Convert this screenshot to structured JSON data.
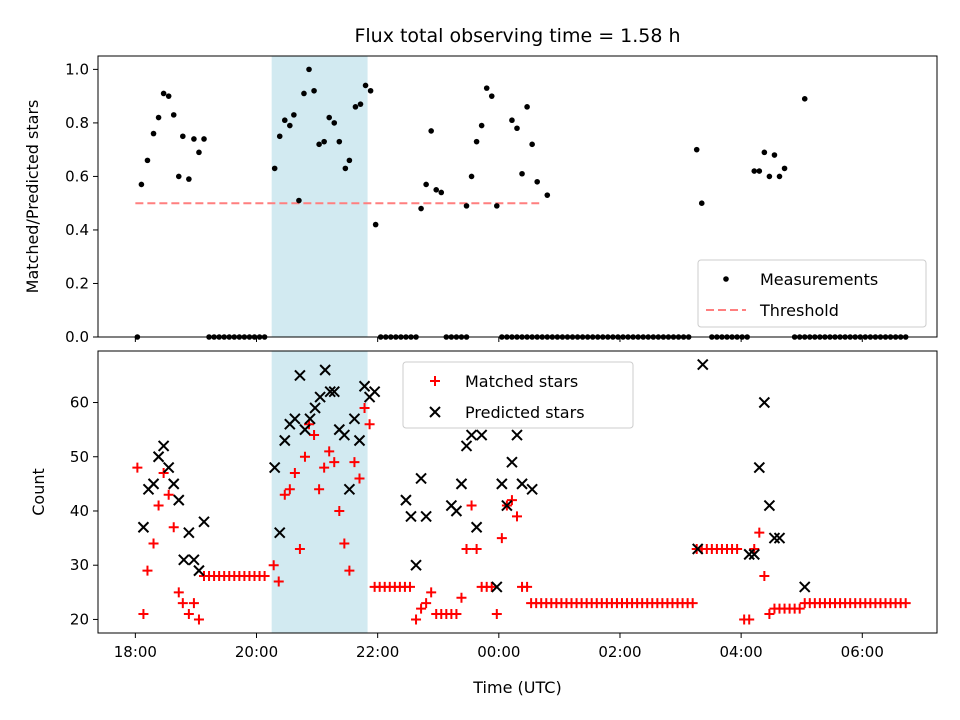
{
  "chart_data": [
    {
      "type": "scatter",
      "title": "Flux total observing time = 1.58 h",
      "xlabel": "",
      "ylabel": "Matched/Predicted stars",
      "x_unit": "time (UTC)",
      "xlim": [
        "18:00",
        "06:50"
      ],
      "ylim": [
        0,
        1.05
      ],
      "yticks": [
        0.0,
        0.2,
        0.4,
        0.6,
        0.8,
        1.0
      ],
      "ytick_labels": [
        "0.0",
        "0.2",
        "0.4",
        "0.6",
        "0.8",
        "1.0"
      ],
      "shaded_region": {
        "start": "20:15",
        "end": "21:50",
        "color": "#add8e6"
      },
      "legend": {
        "placement": "lower right",
        "entries": [
          "Measurements",
          "Threshold"
        ]
      },
      "series": [
        {
          "name": "Measurements",
          "marker": "dot",
          "color": "#000000",
          "points": [
            [
              "18:02",
              0.0
            ],
            [
              "18:06",
              0.57
            ],
            [
              "18:12",
              0.66
            ],
            [
              "18:18",
              0.76
            ],
            [
              "18:23",
              0.82
            ],
            [
              "18:28",
              0.91
            ],
            [
              "18:33",
              0.9
            ],
            [
              "18:38",
              0.83
            ],
            [
              "18:43",
              0.6
            ],
            [
              "18:47",
              0.75
            ],
            [
              "18:53",
              0.59
            ],
            [
              "18:58",
              0.74
            ],
            [
              "19:03",
              0.69
            ],
            [
              "19:08",
              0.74
            ],
            [
              "20:18",
              0.63
            ],
            [
              "20:23",
              0.75
            ],
            [
              "20:28",
              0.81
            ],
            [
              "20:33",
              0.79
            ],
            [
              "20:37",
              0.83
            ],
            [
              "20:42",
              0.51
            ],
            [
              "20:47",
              0.91
            ],
            [
              "20:52",
              1.0
            ],
            [
              "20:57",
              0.92
            ],
            [
              "21:02",
              0.72
            ],
            [
              "21:07",
              0.73
            ],
            [
              "21:12",
              0.82
            ],
            [
              "21:17",
              0.8
            ],
            [
              "21:22",
              0.73
            ],
            [
              "21:28",
              0.63
            ],
            [
              "21:32",
              0.66
            ],
            [
              "21:38",
              0.86
            ],
            [
              "21:43",
              0.87
            ],
            [
              "21:48",
              0.94
            ],
            [
              "21:53",
              0.92
            ],
            [
              "21:58",
              0.42
            ],
            [
              "22:43",
              0.48
            ],
            [
              "22:48",
              0.57
            ],
            [
              "22:53",
              0.77
            ],
            [
              "22:58",
              0.55
            ],
            [
              "23:03",
              0.54
            ],
            [
              "23:28",
              0.49
            ],
            [
              "23:33",
              0.6
            ],
            [
              "23:38",
              0.73
            ],
            [
              "23:43",
              0.79
            ],
            [
              "23:48",
              0.93
            ],
            [
              "23:53",
              0.9
            ],
            [
              "23:58",
              0.49
            ],
            [
              "24:13",
              0.81
            ],
            [
              "24:18",
              0.78
            ],
            [
              "24:23",
              0.61
            ],
            [
              "24:28",
              0.86
            ],
            [
              "24:33",
              0.72
            ],
            [
              "24:38",
              0.58
            ],
            [
              "24:48",
              0.53
            ],
            [
              "27:16",
              0.7
            ],
            [
              "27:21",
              0.5
            ],
            [
              "28:13",
              0.62
            ],
            [
              "28:18",
              0.62
            ],
            [
              "28:23",
              0.69
            ],
            [
              "28:28",
              0.6
            ],
            [
              "28:33",
              0.68
            ],
            [
              "28:38",
              0.6
            ],
            [
              "28:43",
              0.63
            ],
            [
              "29:03",
              0.89
            ]
          ]
        },
        {
          "name": "Threshold",
          "line_style": "dashed",
          "color": "#ff7f7f",
          "value": 0.5,
          "x_range": [
            "18:00",
            "24:40"
          ]
        }
      ],
      "zero_measurements": [
        [
          "19:13",
          "20:11",
          5
        ],
        [
          "22:03",
          "22:38",
          5
        ],
        [
          "23:08",
          "23:28",
          5
        ],
        [
          "24:03",
          "24:48",
          5
        ],
        [
          "24:53",
          "27:11",
          5
        ],
        [
          "27:31",
          "28:08",
          5
        ],
        [
          "28:53",
          "30:43",
          5
        ]
      ]
    },
    {
      "type": "scatter",
      "title": "",
      "xlabel": "Time (UTC)",
      "ylabel": "Count",
      "xlim": [
        "17:23",
        "07:14"
      ],
      "ylim": [
        17.5,
        69.5
      ],
      "yticks": [
        20,
        30,
        40,
        50,
        60
      ],
      "ytick_labels": [
        "20",
        "30",
        "40",
        "50",
        "60"
      ],
      "xticks": [
        "18:00",
        "20:00",
        "22:00",
        "00:00",
        "02:00",
        "04:00",
        "06:00"
      ],
      "shaded_region": {
        "start": "20:15",
        "end": "21:50",
        "color": "#add8e6"
      },
      "legend": {
        "placement": "upper center",
        "entries": [
          "Matched stars",
          "Predicted stars"
        ]
      },
      "series": [
        {
          "name": "Matched stars",
          "marker": "plus",
          "color": "#ff0000",
          "points": [
            [
              "18:02",
              48
            ],
            [
              "18:08",
              21
            ],
            [
              "18:12",
              29
            ],
            [
              "18:18",
              34
            ],
            [
              "18:23",
              41
            ],
            [
              "18:28",
              47
            ],
            [
              "18:33",
              43
            ],
            [
              "18:38",
              37
            ],
            [
              "18:43",
              25
            ],
            [
              "18:47",
              23
            ],
            [
              "18:53",
              21
            ],
            [
              "18:58",
              23
            ],
            [
              "19:03",
              20
            ],
            [
              "20:17",
              30
            ],
            [
              "20:22",
              27
            ],
            [
              "20:28",
              43
            ],
            [
              "20:33",
              44
            ],
            [
              "20:38",
              47
            ],
            [
              "20:43",
              33
            ],
            [
              "20:48",
              50
            ],
            [
              "20:52",
              56
            ],
            [
              "20:57",
              54
            ],
            [
              "21:02",
              44
            ],
            [
              "21:07",
              48
            ],
            [
              "21:12",
              51
            ],
            [
              "21:17",
              49
            ],
            [
              "21:22",
              40
            ],
            [
              "21:27",
              34
            ],
            [
              "21:32",
              29
            ],
            [
              "21:37",
              49
            ],
            [
              "21:42",
              46
            ],
            [
              "21:47",
              59
            ],
            [
              "21:52",
              56
            ],
            [
              "22:38",
              20
            ],
            [
              "22:43",
              22
            ],
            [
              "22:48",
              23
            ],
            [
              "22:53",
              25
            ],
            [
              "22:58",
              21
            ],
            [
              "23:03",
              21
            ],
            [
              "23:08",
              21
            ],
            [
              "23:13",
              21
            ],
            [
              "23:18",
              21
            ],
            [
              "23:23",
              24
            ],
            [
              "23:28",
              33
            ],
            [
              "23:33",
              41
            ],
            [
              "23:38",
              33
            ],
            [
              "23:43",
              26
            ],
            [
              "23:48",
              26
            ],
            [
              "23:53",
              26
            ],
            [
              "23:58",
              21
            ],
            [
              "24:03",
              35
            ],
            [
              "24:08",
              41
            ],
            [
              "24:13",
              42
            ],
            [
              "24:18",
              39
            ],
            [
              "24:23",
              26
            ],
            [
              "24:28",
              26
            ],
            [
              "28:03",
              20
            ],
            [
              "28:08",
              20
            ],
            [
              "28:13",
              33
            ],
            [
              "28:18",
              36
            ],
            [
              "28:23",
              28
            ],
            [
              "28:28",
              21
            ],
            [
              "28:33",
              22
            ]
          ],
          "flat_runs": [
            [
              "19:08",
              "20:12",
              28
            ],
            [
              "21:57",
              "22:33",
              26
            ],
            [
              "24:32",
              "27:12",
              23
            ],
            [
              "27:16",
              "28:00",
              33
            ],
            [
              "28:38",
              "28:58",
              22
            ],
            [
              "29:03",
              "30:43",
              23
            ]
          ]
        },
        {
          "name": "Predicted stars",
          "marker": "x",
          "color": "#000000",
          "points": [
            [
              "18:08",
              37
            ],
            [
              "18:13",
              44
            ],
            [
              "18:18",
              45
            ],
            [
              "18:23",
              50
            ],
            [
              "18:28",
              52
            ],
            [
              "18:33",
              48
            ],
            [
              "18:38",
              45
            ],
            [
              "18:43",
              42
            ],
            [
              "18:48",
              31
            ],
            [
              "18:53",
              36
            ],
            [
              "18:58",
              31
            ],
            [
              "19:03",
              29
            ],
            [
              "19:08",
              38
            ],
            [
              "20:18",
              48
            ],
            [
              "20:23",
              36
            ],
            [
              "20:28",
              53
            ],
            [
              "20:33",
              56
            ],
            [
              "20:38",
              57
            ],
            [
              "20:43",
              65
            ],
            [
              "20:48",
              55
            ],
            [
              "20:53",
              57
            ],
            [
              "20:58",
              59
            ],
            [
              "21:03",
              61
            ],
            [
              "21:08",
              66
            ],
            [
              "21:13",
              62
            ],
            [
              "21:17",
              62
            ],
            [
              "21:22",
              55
            ],
            [
              "21:27",
              54
            ],
            [
              "21:32",
              44
            ],
            [
              "21:37",
              57
            ],
            [
              "21:42",
              53
            ],
            [
              "21:47",
              63
            ],
            [
              "21:52",
              61
            ],
            [
              "21:57",
              62
            ],
            [
              "22:28",
              42
            ],
            [
              "22:33",
              39
            ],
            [
              "22:38",
              30
            ],
            [
              "22:43",
              46
            ],
            [
              "22:48",
              39
            ],
            [
              "23:13",
              41
            ],
            [
              "23:18",
              40
            ],
            [
              "23:23",
              45
            ],
            [
              "23:28",
              52
            ],
            [
              "23:33",
              54
            ],
            [
              "23:38",
              37
            ],
            [
              "23:43",
              54
            ],
            [
              "23:58",
              26
            ],
            [
              "24:03",
              45
            ],
            [
              "24:08",
              41
            ],
            [
              "24:13",
              49
            ],
            [
              "24:18",
              54
            ],
            [
              "24:23",
              45
            ],
            [
              "24:33",
              44
            ],
            [
              "27:17",
              33
            ],
            [
              "27:22",
              67
            ],
            [
              "28:08",
              32
            ],
            [
              "28:13",
              32
            ],
            [
              "28:18",
              48
            ],
            [
              "28:23",
              60
            ],
            [
              "28:28",
              41
            ],
            [
              "28:33",
              35
            ],
            [
              "28:38",
              35
            ],
            [
              "29:03",
              26
            ]
          ]
        }
      ]
    }
  ]
}
